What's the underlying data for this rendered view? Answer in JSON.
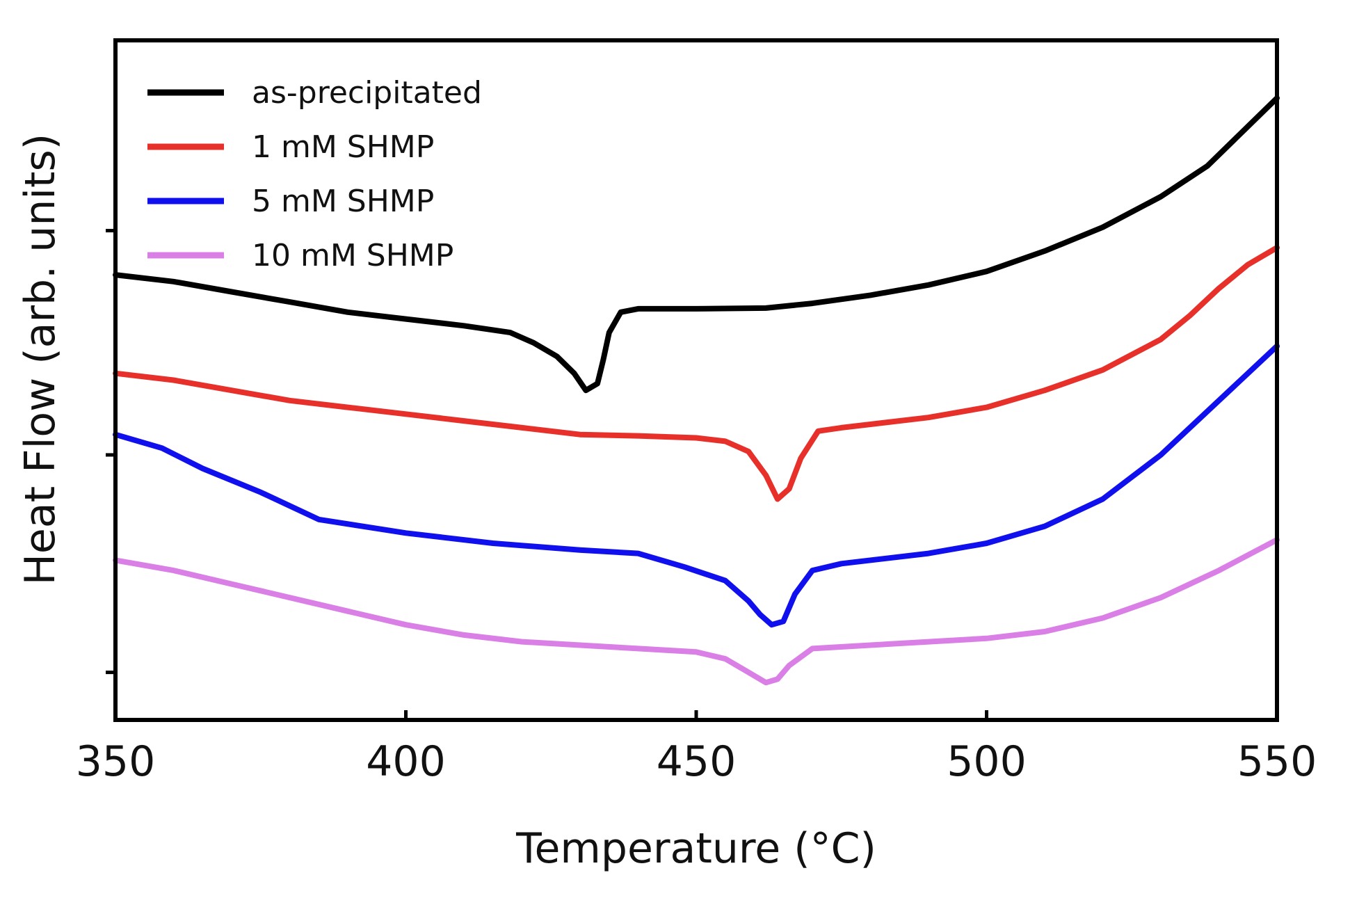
{
  "chart_data": {
    "type": "line",
    "title": "",
    "xlabel": "Temperature (°C)",
    "ylabel": "Heat Flow (arb. units)",
    "xlim": [
      350,
      550
    ],
    "ylim": [
      0,
      100
    ],
    "xticks": [
      350,
      400,
      450,
      500,
      550
    ],
    "xtick_labels": [
      "350",
      "400",
      "450",
      "500",
      "550"
    ],
    "yticks": [
      7,
      39,
      72
    ],
    "grid": false,
    "legend_position": "top-left",
    "series": [
      {
        "name": "as-precipitated",
        "color": "#000000",
        "points": [
          [
            350,
            65.5
          ],
          [
            360,
            64.5
          ],
          [
            370,
            63.0
          ],
          [
            380,
            61.5
          ],
          [
            390,
            60.0
          ],
          [
            400,
            59.0
          ],
          [
            410,
            58.0
          ],
          [
            418,
            57.0
          ],
          [
            422,
            55.5
          ],
          [
            426,
            53.5
          ],
          [
            429,
            51.0
          ],
          [
            431,
            48.5
          ],
          [
            433,
            49.5
          ],
          [
            434,
            53.0
          ],
          [
            435,
            57.0
          ],
          [
            437,
            60.0
          ],
          [
            440,
            60.5
          ],
          [
            450,
            60.5
          ],
          [
            462,
            60.6
          ],
          [
            470,
            61.3
          ],
          [
            480,
            62.5
          ],
          [
            490,
            64.0
          ],
          [
            500,
            66.0
          ],
          [
            510,
            69.0
          ],
          [
            520,
            72.5
          ],
          [
            530,
            77.0
          ],
          [
            538,
            81.5
          ],
          [
            544,
            86.5
          ],
          [
            550,
            91.5
          ]
        ]
      },
      {
        "name": "1 mM SHMP",
        "color": "#e8302a",
        "points": [
          [
            350,
            51.0
          ],
          [
            360,
            50.0
          ],
          [
            370,
            48.5
          ],
          [
            380,
            47.0
          ],
          [
            390,
            46.0
          ],
          [
            400,
            45.0
          ],
          [
            410,
            44.0
          ],
          [
            420,
            43.0
          ],
          [
            430,
            42.0
          ],
          [
            440,
            41.8
          ],
          [
            450,
            41.5
          ],
          [
            455,
            41.0
          ],
          [
            459,
            39.5
          ],
          [
            462,
            36.0
          ],
          [
            464,
            32.5
          ],
          [
            466,
            34.0
          ],
          [
            468,
            38.5
          ],
          [
            471,
            42.5
          ],
          [
            475,
            43.0
          ],
          [
            480,
            43.5
          ],
          [
            490,
            44.5
          ],
          [
            500,
            46.0
          ],
          [
            510,
            48.5
          ],
          [
            520,
            51.5
          ],
          [
            530,
            56.0
          ],
          [
            535,
            59.5
          ],
          [
            540,
            63.5
          ],
          [
            545,
            67.0
          ],
          [
            550,
            69.5
          ]
        ]
      },
      {
        "name": "5 mM SHMP",
        "color": "#1010ee",
        "points": [
          [
            350,
            42.0
          ],
          [
            358,
            40.0
          ],
          [
            365,
            37.0
          ],
          [
            375,
            33.5
          ],
          [
            385,
            29.5
          ],
          [
            400,
            27.5
          ],
          [
            415,
            26.0
          ],
          [
            430,
            25.0
          ],
          [
            440,
            24.5
          ],
          [
            448,
            22.5
          ],
          [
            455,
            20.5
          ],
          [
            459,
            17.5
          ],
          [
            461,
            15.5
          ],
          [
            463,
            14.0
          ],
          [
            465,
            14.5
          ],
          [
            467,
            18.5
          ],
          [
            470,
            22.0
          ],
          [
            475,
            23.0
          ],
          [
            490,
            24.5
          ],
          [
            500,
            26.0
          ],
          [
            510,
            28.5
          ],
          [
            520,
            32.5
          ],
          [
            530,
            39.0
          ],
          [
            540,
            47.0
          ],
          [
            550,
            55.0
          ]
        ]
      },
      {
        "name": "10 mM SHMP",
        "color": "#d97fe6",
        "points": [
          [
            350,
            23.5
          ],
          [
            360,
            22.0
          ],
          [
            370,
            20.0
          ],
          [
            380,
            18.0
          ],
          [
            390,
            16.0
          ],
          [
            400,
            14.0
          ],
          [
            410,
            12.5
          ],
          [
            420,
            11.5
          ],
          [
            430,
            11.0
          ],
          [
            440,
            10.5
          ],
          [
            450,
            10.0
          ],
          [
            455,
            9.0
          ],
          [
            459,
            7.0
          ],
          [
            462,
            5.5
          ],
          [
            464,
            6.0
          ],
          [
            466,
            8.0
          ],
          [
            470,
            10.5
          ],
          [
            480,
            11.0
          ],
          [
            490,
            11.5
          ],
          [
            500,
            12.0
          ],
          [
            510,
            13.0
          ],
          [
            520,
            15.0
          ],
          [
            530,
            18.0
          ],
          [
            540,
            22.0
          ],
          [
            550,
            26.5
          ]
        ]
      }
    ]
  }
}
